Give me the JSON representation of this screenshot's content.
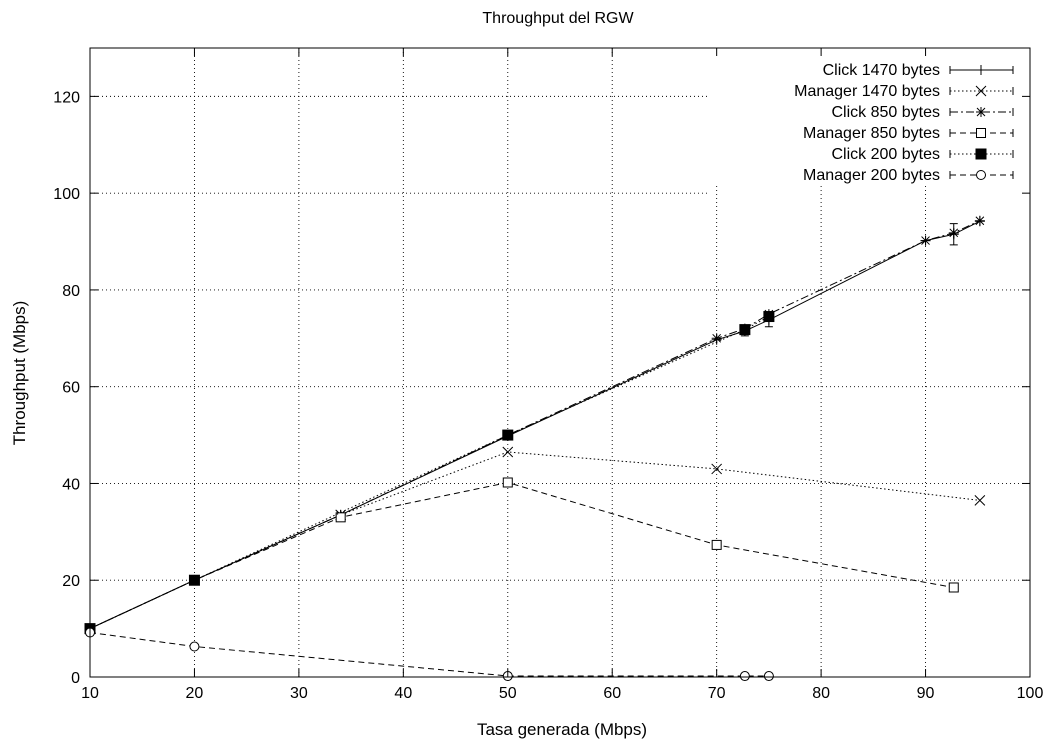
{
  "chart_data": {
    "type": "line",
    "title": "Throughput del RGW",
    "xlabel": "Tasa generada (Mbps)",
    "ylabel": "Throughput (Mbps)",
    "xlim": [
      10,
      100
    ],
    "ylim": [
      0,
      130
    ],
    "xticks": [
      10,
      20,
      30,
      40,
      50,
      60,
      70,
      80,
      90,
      100
    ],
    "yticks": [
      0,
      20,
      40,
      60,
      80,
      100,
      120
    ],
    "grid": true,
    "legend_position": "top-right",
    "series": [
      {
        "name": "Click 1470 bytes",
        "marker": "plus",
        "dash": "solid",
        "x": [
          10,
          20,
          34,
          50,
          70,
          72.7,
          75,
          90,
          92.7,
          95.2
        ],
        "y": [
          10,
          20,
          33.5,
          49.8,
          69.7,
          71.5,
          73.8,
          90.2,
          91.5,
          94.2
        ]
      },
      {
        "name": "Manager 1470 bytes",
        "marker": "cross",
        "dash": "dotted",
        "x": [
          10,
          20,
          34,
          50,
          70,
          95.2
        ],
        "y": [
          10,
          20,
          33.5,
          46.5,
          43,
          36.5
        ]
      },
      {
        "name": "Click 850 bytes",
        "marker": "star",
        "dash": "dashdot",
        "x": [
          10,
          20,
          34,
          50,
          70,
          72.7,
          75,
          90,
          92.7,
          95.2
        ],
        "y": [
          10,
          20,
          33.5,
          50,
          70,
          72,
          75,
          90.2,
          91.8,
          94.3
        ]
      },
      {
        "name": "Manager 850 bytes",
        "marker": "square-open",
        "dash": "dashed",
        "x": [
          10,
          20,
          34,
          50,
          70,
          92.7
        ],
        "y": [
          10,
          20,
          33,
          40.2,
          27.3,
          18.5
        ]
      },
      {
        "name": "Click 200 bytes",
        "marker": "square-filled",
        "dash": "dotted",
        "x": [
          10,
          20,
          50,
          72.7,
          75
        ],
        "y": [
          10,
          20,
          50,
          71.8,
          74.5
        ]
      },
      {
        "name": "Manager 200 bytes",
        "marker": "circle-open",
        "dash": "dashed",
        "x": [
          10,
          20,
          50,
          72.7,
          75
        ],
        "y": [
          9.2,
          6.3,
          0.2,
          0.2,
          0.2
        ]
      }
    ]
  }
}
